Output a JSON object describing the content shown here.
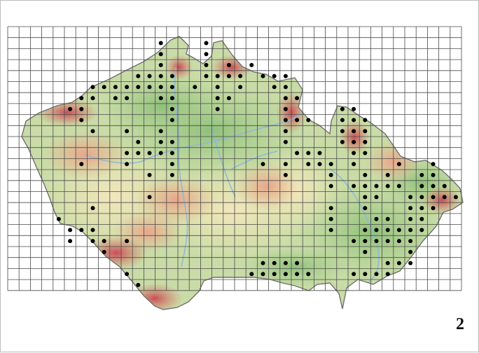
{
  "figure": {
    "panel_number": "2"
  },
  "grid": {
    "columns": 40,
    "rows": 24,
    "line_color": "#4a4a4a"
  },
  "colors": {
    "lowland": "#a9cf8e",
    "lowland_dark": "#8fc07a",
    "hills": "#efe7b6",
    "uplands": "#e9b38e",
    "mountains": "#d9786a",
    "peaks": "#c94e57",
    "rivers": "#8fb9d6",
    "border": "#707070",
    "dot": "#000000"
  },
  "occurrence_cells": [
    [
      13,
      1
    ],
    [
      17,
      1
    ],
    [
      13,
      2
    ],
    [
      17,
      2
    ],
    [
      13,
      3
    ],
    [
      17,
      3
    ],
    [
      19,
      3
    ],
    [
      21,
      3
    ],
    [
      11,
      4
    ],
    [
      12,
      4
    ],
    [
      13,
      4
    ],
    [
      14,
      4
    ],
    [
      17,
      4
    ],
    [
      18,
      4
    ],
    [
      19,
      4
    ],
    [
      20,
      4
    ],
    [
      22,
      4
    ],
    [
      23,
      4
    ],
    [
      24,
      4
    ],
    [
      7,
      5
    ],
    [
      8,
      5
    ],
    [
      9,
      5
    ],
    [
      10,
      5
    ],
    [
      11,
      5
    ],
    [
      12,
      5
    ],
    [
      13,
      5
    ],
    [
      14,
      5
    ],
    [
      16,
      5
    ],
    [
      18,
      5
    ],
    [
      20,
      5
    ],
    [
      23,
      5
    ],
    [
      24,
      5
    ],
    [
      6,
      6
    ],
    [
      7,
      6
    ],
    [
      9,
      6
    ],
    [
      10,
      6
    ],
    [
      13,
      6
    ],
    [
      14,
      6
    ],
    [
      18,
      6
    ],
    [
      19,
      6
    ],
    [
      24,
      6
    ],
    [
      25,
      6
    ],
    [
      5,
      7
    ],
    [
      6,
      7
    ],
    [
      14,
      7
    ],
    [
      18,
      7
    ],
    [
      24,
      7
    ],
    [
      29,
      7
    ],
    [
      30,
      7
    ],
    [
      6,
      8
    ],
    [
      14,
      8
    ],
    [
      24,
      8
    ],
    [
      25,
      8
    ],
    [
      26,
      8
    ],
    [
      29,
      8
    ],
    [
      30,
      8
    ],
    [
      31,
      8
    ],
    [
      7,
      9
    ],
    [
      10,
      9
    ],
    [
      13,
      9
    ],
    [
      24,
      9
    ],
    [
      29,
      9
    ],
    [
      30,
      9
    ],
    [
      31,
      9
    ],
    [
      11,
      10
    ],
    [
      13,
      10
    ],
    [
      14,
      10
    ],
    [
      24,
      10
    ],
    [
      29,
      10
    ],
    [
      30,
      10
    ],
    [
      31,
      10
    ],
    [
      10,
      11
    ],
    [
      11,
      11
    ],
    [
      12,
      11
    ],
    [
      13,
      11
    ],
    [
      14,
      11
    ],
    [
      25,
      11
    ],
    [
      26,
      11
    ],
    [
      27,
      11
    ],
    [
      30,
      11
    ],
    [
      31,
      11
    ],
    [
      6,
      12
    ],
    [
      10,
      12
    ],
    [
      14,
      12
    ],
    [
      22,
      12
    ],
    [
      24,
      12
    ],
    [
      26,
      12
    ],
    [
      27,
      12
    ],
    [
      28,
      12
    ],
    [
      30,
      12
    ],
    [
      34,
      12
    ],
    [
      37,
      12
    ],
    [
      12,
      13
    ],
    [
      14,
      13
    ],
    [
      24,
      13
    ],
    [
      28,
      13
    ],
    [
      31,
      13
    ],
    [
      33,
      13
    ],
    [
      36,
      13
    ],
    [
      37,
      13
    ],
    [
      28,
      14
    ],
    [
      30,
      14
    ],
    [
      31,
      14
    ],
    [
      32,
      14
    ],
    [
      33,
      14
    ],
    [
      34,
      14
    ],
    [
      36,
      14
    ],
    [
      37,
      14
    ],
    [
      38,
      14
    ],
    [
      12,
      15
    ],
    [
      31,
      15
    ],
    [
      32,
      15
    ],
    [
      35,
      15
    ],
    [
      36,
      15
    ],
    [
      37,
      15
    ],
    [
      38,
      15
    ],
    [
      39,
      15
    ],
    [
      7,
      16
    ],
    [
      28,
      16
    ],
    [
      31,
      16
    ],
    [
      35,
      16
    ],
    [
      36,
      16
    ],
    [
      37,
      16
    ],
    [
      4,
      17
    ],
    [
      28,
      17
    ],
    [
      32,
      17
    ],
    [
      33,
      17
    ],
    [
      35,
      17
    ],
    [
      36,
      17
    ],
    [
      5,
      18
    ],
    [
      6,
      18
    ],
    [
      7,
      18
    ],
    [
      28,
      18
    ],
    [
      31,
      18
    ],
    [
      32,
      18
    ],
    [
      33,
      18
    ],
    [
      34,
      18
    ],
    [
      35,
      18
    ],
    [
      36,
      18
    ],
    [
      5,
      19
    ],
    [
      7,
      19
    ],
    [
      8,
      19
    ],
    [
      10,
      19
    ],
    [
      30,
      19
    ],
    [
      31,
      19
    ],
    [
      32,
      19
    ],
    [
      33,
      19
    ],
    [
      34,
      19
    ],
    [
      35,
      19
    ],
    [
      8,
      20
    ],
    [
      31,
      20
    ],
    [
      35,
      20
    ],
    [
      22,
      21
    ],
    [
      23,
      21
    ],
    [
      24,
      21
    ],
    [
      25,
      21
    ],
    [
      33,
      21
    ],
    [
      34,
      21
    ],
    [
      35,
      21
    ],
    [
      10,
      22
    ],
    [
      21,
      22
    ],
    [
      22,
      22
    ],
    [
      23,
      22
    ],
    [
      24,
      22
    ],
    [
      25,
      22
    ],
    [
      26,
      22
    ],
    [
      30,
      22
    ],
    [
      31,
      22
    ],
    [
      32,
      22
    ],
    [
      33,
      22
    ],
    [
      11,
      23
    ]
  ]
}
